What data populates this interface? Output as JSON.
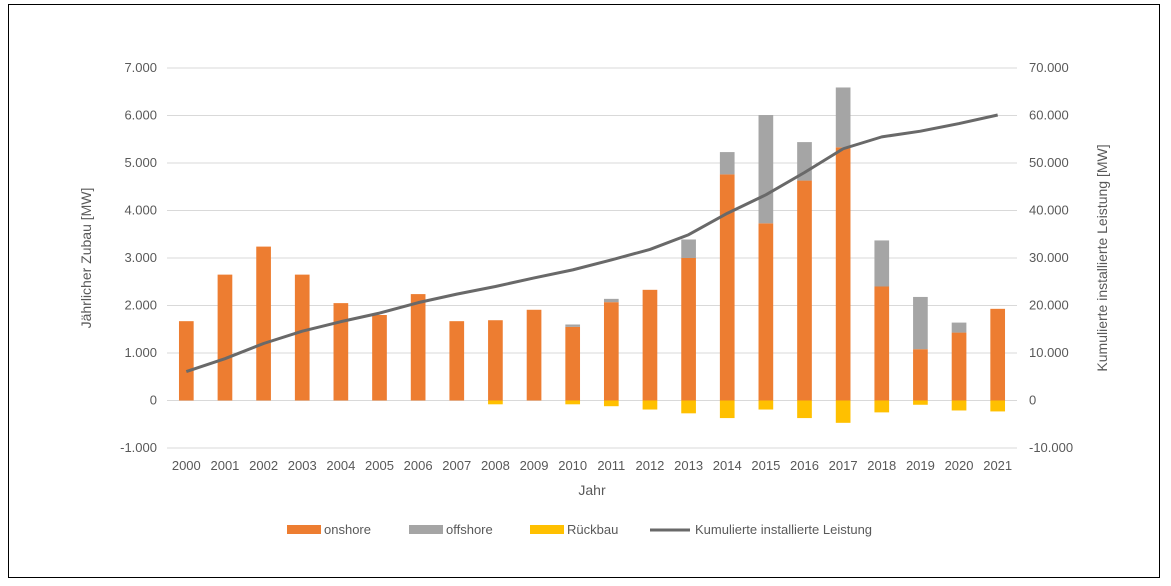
{
  "chart_data": {
    "type": "bar",
    "categories": [
      "2000",
      "2001",
      "2002",
      "2003",
      "2004",
      "2005",
      "2006",
      "2007",
      "2008",
      "2009",
      "2010",
      "2011",
      "2012",
      "2013",
      "2014",
      "2015",
      "2016",
      "2017",
      "2018",
      "2019",
      "2020",
      "2021"
    ],
    "series": [
      {
        "name": "onshore",
        "color": "#ED7D31",
        "axis": "left",
        "values": [
          1670,
          2650,
          3240,
          2650,
          2050,
          1800,
          2240,
          1670,
          1690,
          1910,
          1550,
          2070,
          2330,
          3000,
          4760,
          3730,
          4630,
          5330,
          2400,
          1080,
          1430,
          1930
        ]
      },
      {
        "name": "offshore",
        "color": "#A5A5A5",
        "axis": "left",
        "values": [
          0,
          0,
          0,
          0,
          0,
          0,
          0,
          0,
          0,
          0,
          50,
          70,
          0,
          390,
          470,
          2280,
          810,
          1260,
          970,
          1100,
          210,
          0
        ]
      },
      {
        "name": "Rückbau",
        "color": "#FFC000",
        "axis": "left",
        "values": [
          0,
          0,
          0,
          0,
          0,
          0,
          0,
          0,
          -80,
          0,
          -80,
          -120,
          -190,
          -270,
          -370,
          -190,
          -370,
          -470,
          -250,
          -90,
          -210,
          -230
        ]
      },
      {
        "name": "Kumulierte installierte Leistung",
        "color": "#696969",
        "axis": "right",
        "type": "line",
        "values": [
          6100,
          8800,
          12000,
          14600,
          16600,
          18400,
          20600,
          22400,
          24000,
          25800,
          27500,
          29600,
          31800,
          34900,
          39400,
          43300,
          48000,
          53000,
          55500,
          56700,
          58300,
          60100
        ]
      }
    ],
    "ylabel": "Jährlicher Zubau [MW]",
    "y2label": "Kumulierte installierte Leistung [MW]",
    "xlabel": "Jahr",
    "ylim": [
      -1000,
      7000
    ],
    "y2lim": [
      -10000,
      70000
    ],
    "yticks": [
      "-1.000",
      "0",
      "1.000",
      "2.000",
      "3.000",
      "4.000",
      "5.000",
      "6.000",
      "7.000"
    ],
    "y2ticks": [
      "-10.000",
      "0",
      "10.000",
      "20.000",
      "30.000",
      "40.000",
      "50.000",
      "60.000",
      "70.000"
    ],
    "grid": true,
    "legend_position": "bottom"
  }
}
